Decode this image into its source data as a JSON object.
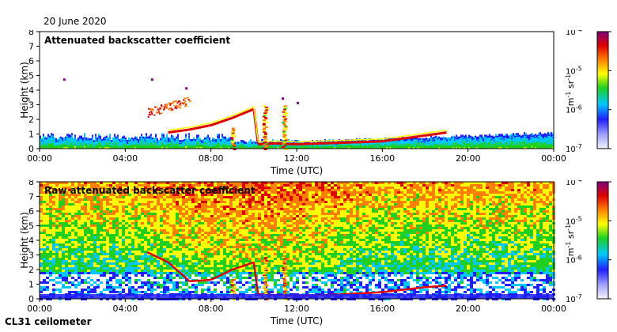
{
  "date": "20 June 2020",
  "instrument": "CL31 ceilometer",
  "chart_data": [
    {
      "type": "heatmap",
      "title": "Attenuated backscatter coefficient",
      "xlabel": "Time (UTC)",
      "ylabel": "Height (km)",
      "xticks": [
        "00:00",
        "04:00",
        "08:00",
        "12:00",
        "16:00",
        "20:00",
        "00:00"
      ],
      "yticks": [
        "0",
        "1",
        "2",
        "3",
        "4",
        "5",
        "6",
        "7",
        "8"
      ],
      "ylim": [
        0,
        8
      ],
      "colorbar": {
        "label_base": "m",
        "label_exp1": "-1",
        "label_unit2": "sr",
        "label_exp2": "-1",
        "scale": "log",
        "ticks": [
          {
            "base": "10",
            "exp": "-4"
          },
          {
            "base": "10",
            "exp": "-5"
          },
          {
            "base": "10",
            "exp": "-6"
          },
          {
            "base": "10",
            "exp": "-7"
          }
        ]
      }
    },
    {
      "type": "heatmap",
      "title": "Raw attenuated backscatter coefficient",
      "xlabel": "Time (UTC)",
      "ylabel": "Height (km)",
      "xticks": [
        "00:00",
        "04:00",
        "08:00",
        "12:00",
        "16:00",
        "20:00",
        "00:00"
      ],
      "yticks": [
        "0",
        "1",
        "2",
        "3",
        "4",
        "5",
        "6",
        "7",
        "8"
      ],
      "ylim": [
        0,
        8
      ],
      "colorbar": {
        "label_base": "m",
        "label_exp1": "-1",
        "label_unit2": "sr",
        "label_exp2": "-1",
        "scale": "log",
        "ticks": [
          {
            "base": "10",
            "exp": "-4"
          },
          {
            "base": "10",
            "exp": "-5"
          },
          {
            "base": "10",
            "exp": "-6"
          },
          {
            "base": "10",
            "exp": "-7"
          }
        ]
      }
    }
  ]
}
